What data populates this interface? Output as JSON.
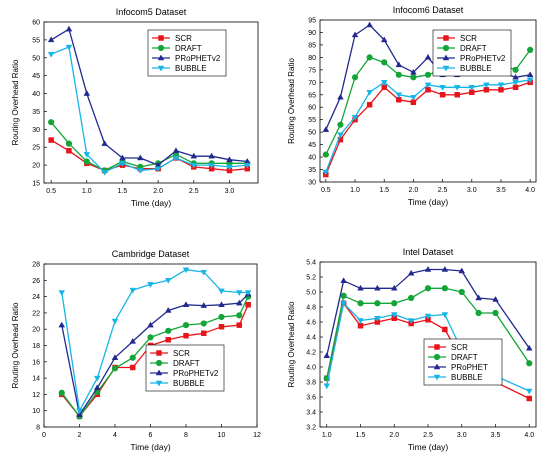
{
  "chart_data": [
    {
      "type": "line",
      "title": "Infocom5 Dataset",
      "xlabel": "Time (day)",
      "ylabel": "Routing Overhead Ratio",
      "xlim": [
        0.4,
        3.4
      ],
      "ylim": [
        15,
        60
      ],
      "xticks": [
        0.5,
        1.0,
        1.5,
        2.0,
        2.5,
        3.0
      ],
      "xtick_labels": [
        "0.5",
        "1.0",
        "1.5",
        "2.0",
        "2.5",
        "3.0"
      ],
      "yticks": [
        15,
        20,
        25,
        30,
        35,
        40,
        45,
        50,
        55,
        60
      ],
      "ytick_labels": [
        "15",
        "20",
        "25",
        "30",
        "35",
        "40",
        "45",
        "50",
        "55",
        "60"
      ],
      "x": [
        0.5,
        0.75,
        1.0,
        1.25,
        1.5,
        1.75,
        2.0,
        2.25,
        2.5,
        2.75,
        3.0,
        3.25
      ],
      "legend_position": "upper-right",
      "series": [
        {
          "name": "SCR",
          "color": "#e8141b",
          "marker": "square",
          "values": [
            27,
            24,
            20.5,
            18.5,
            20,
            19,
            19,
            22,
            19.5,
            19,
            18.5,
            19
          ]
        },
        {
          "name": "DRAFT",
          "color": "#13a538",
          "marker": "circle",
          "values": [
            32,
            26,
            21,
            18.5,
            21,
            19.5,
            20.5,
            23,
            20.5,
            20.5,
            20.5,
            20.5
          ]
        },
        {
          "name": "PRoPHETv2",
          "color": "#232a8f",
          "marker": "triangle",
          "values": [
            55,
            58,
            40,
            26,
            22,
            22,
            20,
            24,
            22.5,
            22.5,
            21.5,
            21
          ]
        },
        {
          "name": "BUBBLE",
          "color": "#17b5e6",
          "marker": "triangle-down",
          "values": [
            51,
            53,
            23,
            18,
            20.5,
            18.5,
            19,
            22,
            20,
            20,
            19.5,
            20
          ]
        }
      ]
    },
    {
      "type": "line",
      "title": "Infocom6 Dataset",
      "xlabel": "Time (day)",
      "ylabel": "Routing Overhead Ratio",
      "xlim": [
        0.4,
        4.1
      ],
      "ylim": [
        30,
        95
      ],
      "xticks": [
        0.5,
        1.0,
        1.5,
        2.0,
        2.5,
        3.0,
        3.5,
        4.0
      ],
      "xtick_labels": [
        "0.5",
        "1.0",
        "1.5",
        "2.0",
        "2.5",
        "3.0",
        "3.5",
        "4.0"
      ],
      "yticks": [
        30,
        35,
        40,
        45,
        50,
        55,
        60,
        65,
        70,
        75,
        80,
        85,
        90,
        95
      ],
      "ytick_labels": [
        "30",
        "35",
        "40",
        "45",
        "50",
        "55",
        "60",
        "65",
        "70",
        "75",
        "80",
        "85",
        "90",
        "95"
      ],
      "x": [
        0.5,
        0.75,
        1.0,
        1.25,
        1.5,
        1.75,
        2.0,
        2.25,
        2.5,
        2.75,
        3.0,
        3.25,
        3.5,
        3.75,
        4.0
      ],
      "legend_position": "upper-right",
      "series": [
        {
          "name": "SCR",
          "color": "#e8141b",
          "marker": "square",
          "values": [
            33,
            47,
            55,
            61,
            68,
            63,
            62,
            67,
            65,
            65,
            66,
            67,
            67,
            68,
            70
          ]
        },
        {
          "name": "DRAFT",
          "color": "#13a538",
          "marker": "circle",
          "values": [
            41,
            53,
            72,
            80,
            78,
            73,
            72,
            73,
            75,
            76,
            79,
            78,
            77,
            75,
            83
          ]
        },
        {
          "name": "PRoPHETv2",
          "color": "#232a8f",
          "marker": "triangle",
          "values": [
            51,
            64,
            89,
            93,
            87,
            77,
            74,
            80,
            73,
            73,
            74,
            74,
            74,
            72,
            73
          ]
        },
        {
          "name": "BUBBLE",
          "color": "#17b5e6",
          "marker": "triangle-down",
          "values": [
            34,
            49,
            56,
            66,
            70,
            65,
            64,
            69,
            68,
            68,
            68,
            69,
            69,
            70,
            71
          ]
        }
      ]
    },
    {
      "type": "line",
      "title": "Cambridge Dataset",
      "xlabel": "Time (day)",
      "ylabel": "Routing Overhead Ratio",
      "xlim": [
        0,
        12
      ],
      "ylim": [
        8,
        28
      ],
      "xticks": [
        0,
        2,
        4,
        6,
        8,
        10,
        12
      ],
      "xtick_labels": [
        "0",
        "2",
        "4",
        "6",
        "8",
        "10",
        "12"
      ],
      "yticks": [
        8,
        10,
        12,
        14,
        16,
        18,
        20,
        22,
        24,
        26,
        28
      ],
      "ytick_labels": [
        "8",
        "10",
        "12",
        "14",
        "16",
        "18",
        "20",
        "22",
        "24",
        "26",
        "28"
      ],
      "x": [
        1,
        2,
        3,
        4,
        5,
        6,
        7,
        8,
        9,
        10,
        11,
        11.5
      ],
      "legend_position": "lower-right",
      "series": [
        {
          "name": "SCR",
          "color": "#e8141b",
          "marker": "square",
          "values": [
            12,
            9.3,
            12,
            15.3,
            15.3,
            18,
            18.7,
            19.2,
            19.5,
            20.3,
            20.5,
            23
          ]
        },
        {
          "name": "DRAFT",
          "color": "#13a538",
          "marker": "circle",
          "values": [
            12.2,
            9.3,
            12.3,
            15.2,
            16.5,
            19,
            19.8,
            20.5,
            20.7,
            21.5,
            21.7,
            24
          ]
        },
        {
          "name": "PRoPHETv2",
          "color": "#232a8f",
          "marker": "triangle",
          "values": [
            20.5,
            9.5,
            12.8,
            16.5,
            18.5,
            20.5,
            22.3,
            23,
            22.9,
            23,
            23.2,
            24.3
          ]
        },
        {
          "name": "BUBBLE",
          "color": "#17b5e6",
          "marker": "triangle-down",
          "values": [
            24.5,
            10,
            14,
            21,
            24.8,
            25.5,
            26,
            27.3,
            27,
            24.7,
            24.5,
            24.5
          ]
        }
      ]
    },
    {
      "type": "line",
      "title": "Intel Dataset",
      "xlabel": "Time (day)",
      "ylabel": "Routing Overhead Ratio",
      "xlim": [
        0.9,
        4.1
      ],
      "ylim": [
        3.2,
        5.4
      ],
      "xticks": [
        1.0,
        1.5,
        2.0,
        2.5,
        3.0,
        3.5,
        4.0
      ],
      "xtick_labels": [
        "1.0",
        "1.5",
        "2.0",
        "2.5",
        "3.0",
        "3.5",
        "4.0"
      ],
      "yticks": [
        3.2,
        3.4,
        3.6,
        3.8,
        4.0,
        4.2,
        4.4,
        4.6,
        4.8,
        5.0,
        5.2,
        5.4
      ],
      "ytick_labels": [
        "3.2",
        "3.4",
        "3.6",
        "3.8",
        "4.0",
        "4.2",
        "4.4",
        "4.6",
        "4.8",
        "5.0",
        "5.2",
        "5.4"
      ],
      "x": [
        1.0,
        1.25,
        1.5,
        1.75,
        2.0,
        2.25,
        2.5,
        2.75,
        3.0,
        3.25,
        3.5,
        4.0
      ],
      "legend_position": "center-right",
      "series": [
        {
          "name": "SCR",
          "color": "#e8141b",
          "marker": "square",
          "values": [
            3.85,
            4.85,
            4.55,
            4.6,
            4.65,
            4.58,
            4.63,
            4.5,
            4.1,
            3.8,
            3.8,
            3.58
          ]
        },
        {
          "name": "DRAFT",
          "color": "#13a538",
          "marker": "circle",
          "values": [
            3.85,
            4.95,
            4.85,
            4.85,
            4.85,
            4.92,
            5.05,
            5.05,
            5.0,
            4.72,
            4.72,
            4.05
          ]
        },
        {
          "name": "PRoPHET",
          "color": "#232a8f",
          "marker": "triangle",
          "values": [
            4.15,
            5.15,
            5.05,
            5.05,
            5.05,
            5.25,
            5.3,
            5.3,
            5.28,
            4.92,
            4.9,
            4.25
          ]
        },
        {
          "name": "BUBBLE",
          "color": "#17b5e6",
          "marker": "triangle-down",
          "values": [
            3.75,
            4.85,
            4.62,
            4.65,
            4.7,
            4.62,
            4.68,
            4.7,
            4.22,
            3.88,
            3.88,
            3.68
          ]
        }
      ]
    }
  ]
}
